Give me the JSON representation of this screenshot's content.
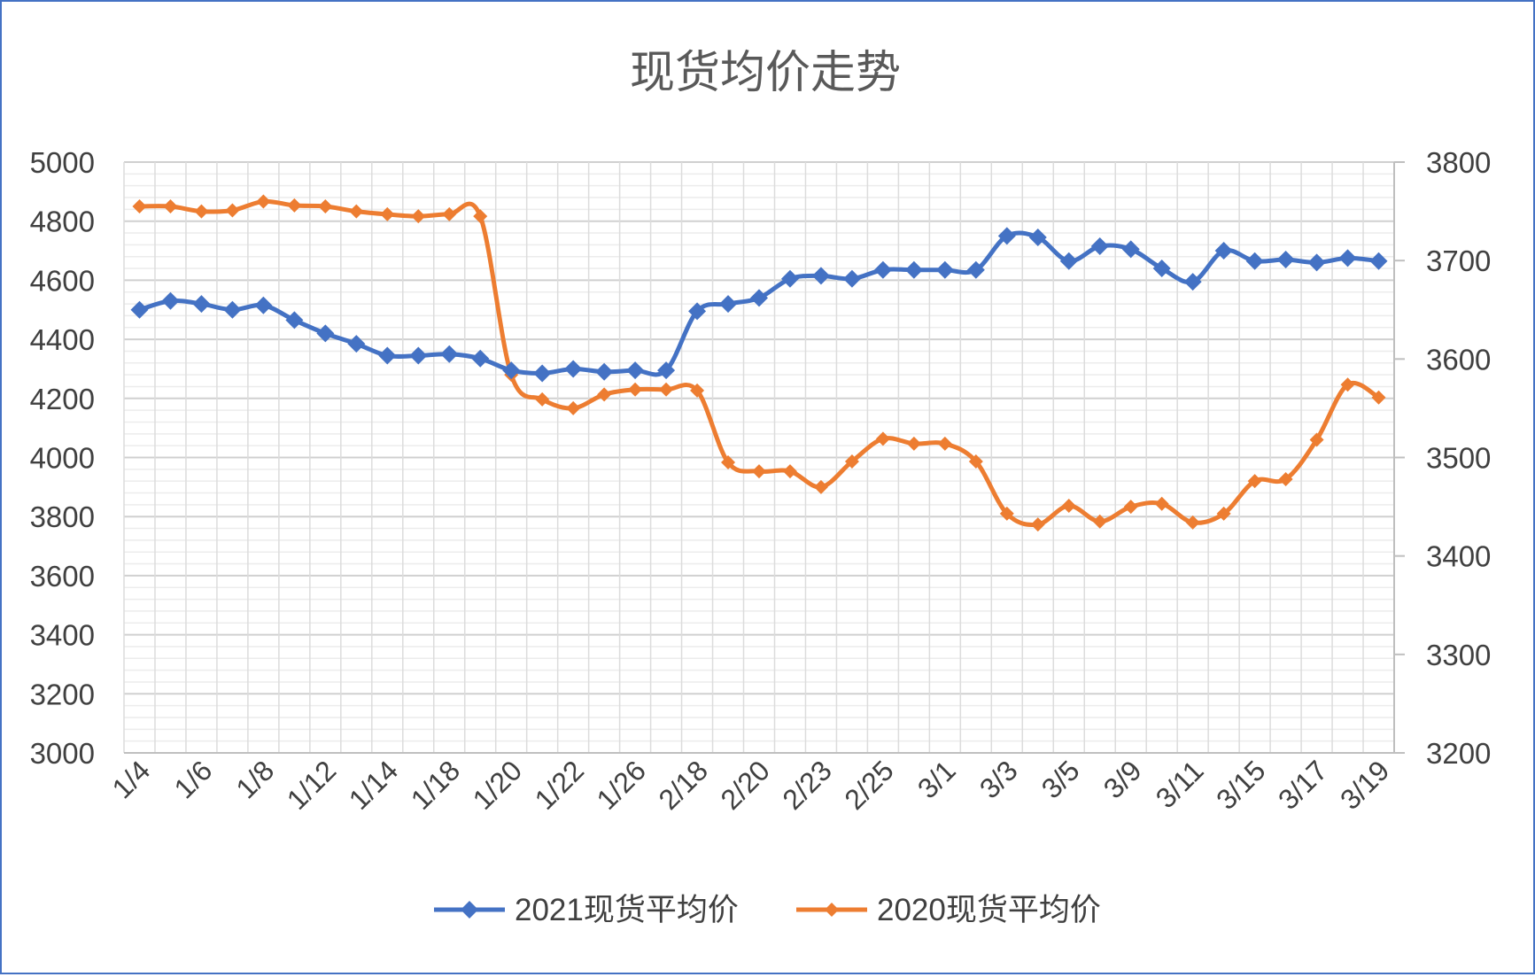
{
  "chart_data": {
    "type": "line",
    "title": "现货均价走势",
    "x_tick_labels": [
      "1/4",
      "1/6",
      "1/8",
      "1/12",
      "1/14",
      "1/18",
      "1/20",
      "1/22",
      "1/26",
      "2/18",
      "2/20",
      "2/23",
      "2/25",
      "3/1",
      "3/3",
      "3/5",
      "3/9",
      "3/11",
      "3/15",
      "3/17",
      "3/19"
    ],
    "y_left": {
      "min": 3000,
      "max": 5000,
      "step": 200,
      "ticks": [
        3000,
        3200,
        3400,
        3600,
        3800,
        4000,
        4200,
        4400,
        4600,
        4800,
        5000
      ]
    },
    "y_right": {
      "min": 3200,
      "max": 3800,
      "step": 100,
      "ticks": [
        3200,
        3300,
        3400,
        3500,
        3600,
        3700,
        3800
      ]
    },
    "grid": true,
    "legend_position": "bottom",
    "series": [
      {
        "name": "2021现货平均价",
        "axis": "left",
        "color": "#4472c4",
        "marker": "diamond",
        "values": [
          4500,
          4530,
          4520,
          4500,
          4515,
          4465,
          4420,
          4385,
          4345,
          4345,
          4350,
          4335,
          4295,
          4285,
          4300,
          4290,
          4295,
          4295,
          4495,
          4520,
          4540,
          4605,
          4615,
          4605,
          4635,
          4635,
          4635,
          4635,
          4750,
          4745,
          4665,
          4715,
          4705,
          4640,
          4595,
          4700,
          4665,
          4670,
          4660,
          4675,
          4665
        ]
      },
      {
        "name": "2020现货平均价",
        "axis": "right",
        "color": "#ed7d31",
        "marker": "diamond",
        "values": [
          3755,
          3755,
          3750,
          3751,
          3760,
          3756,
          3755,
          3750,
          3747,
          3745,
          3747,
          3745,
          3584,
          3559,
          3550,
          3564,
          3569,
          3569,
          3568,
          3495,
          3486,
          3486,
          3470,
          3496,
          3519,
          3514,
          3514,
          3496,
          3443,
          3432,
          3451,
          3435,
          3450,
          3453,
          3434,
          3443,
          3476,
          3478,
          3518,
          3574,
          3561
        ]
      }
    ]
  }
}
